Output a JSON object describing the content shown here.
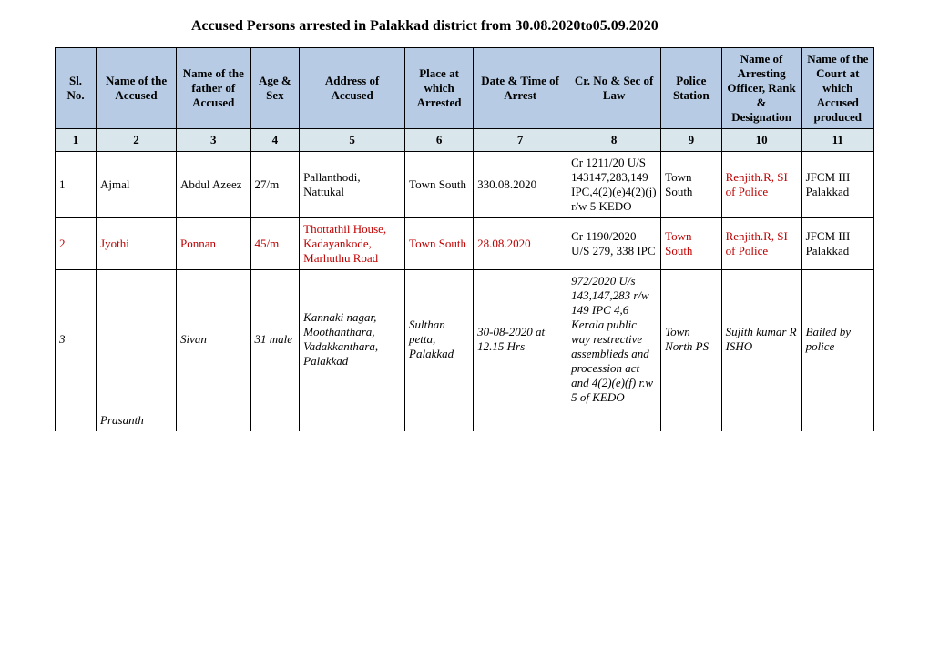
{
  "title": "Accused Persons arrested in   Palakkad  district from  30.08.2020to05.09.2020",
  "columns": [
    {
      "label": "Sl. No.",
      "width": "42"
    },
    {
      "label": "Name of the Accused",
      "width": "82"
    },
    {
      "label": "Name of the father of Accused",
      "width": "76"
    },
    {
      "label": "Age & Sex",
      "width": "50"
    },
    {
      "label": "Address of Accused",
      "width": "108"
    },
    {
      "label": "Place at which Arrested",
      "width": "70"
    },
    {
      "label": "Date & Time of Arrest",
      "width": "96"
    },
    {
      "label": "Cr. No & Sec of Law",
      "width": "96"
    },
    {
      "label": "Police Station",
      "width": "62"
    },
    {
      "label": "Name of Arresting Officer, Rank & Designation",
      "width": "82"
    },
    {
      "label": "Name of the Court at which Accused produced",
      "width": "74"
    }
  ],
  "numrow": [
    "1",
    "2",
    "3",
    "4",
    "5",
    "6",
    "7",
    "8",
    "9",
    "10",
    "11"
  ],
  "rows": [
    {
      "cells": [
        {
          "text": "1"
        },
        {
          "text": "Ajmal"
        },
        {
          "text": "Abdul Azeez"
        },
        {
          "text": "27/m"
        },
        {
          "text": "Pallanthodi, Nattukal"
        },
        {
          "text": "Town South"
        },
        {
          "text": "330.08.2020"
        },
        {
          "text": "Cr 1211/20 U/S 143147,283,149 IPC,4(2)(e)4(2)(j) r/w 5 KEDO"
        },
        {
          "text": "Town South"
        },
        {
          "text": "Renjith.R, SI of Police",
          "red": true
        },
        {
          "text": "JFCM III Palakkad"
        }
      ]
    },
    {
      "red": true,
      "cells": [
        {
          "text": "2"
        },
        {
          "text": "Jyothi"
        },
        {
          "text": "Ponnan"
        },
        {
          "text": "45/m"
        },
        {
          "text": "Thottathil House, Kadayankode, Marhuthu Road"
        },
        {
          "text": "Town South"
        },
        {
          "text": "28.08.2020"
        },
        {
          "text": "Cr 1190/2020 U/S 279, 338 IPC",
          "red": false
        },
        {
          "text": "Town South"
        },
        {
          "text": "Renjith.R, SI of Police"
        },
        {
          "text": "JFCM III Palakkad",
          "red": false
        }
      ]
    },
    {
      "italic": true,
      "cells": [
        {
          "text": "3"
        },
        {
          "text": ""
        },
        {
          "text": "Sivan"
        },
        {
          "text": "31 male"
        },
        {
          "text": "Kannaki nagar, Moothanthara, Vadakkanthara, Palakkad"
        },
        {
          "text": "Sulthan petta, Palakkad"
        },
        {
          "text": "30-08-2020 at 12.15 Hrs"
        },
        {
          "text": "972/2020 U/s 143,147,283 r/w 149 IPC 4,6 Kerala public way restrective assemblieds and procession act and 4(2)(e)(f) r.w 5 of KEDO"
        },
        {
          "text": "Town North PS"
        },
        {
          "text": "Sujith kumar R ISHO"
        },
        {
          "text": "Bailed by police"
        }
      ]
    }
  ],
  "partial_row": {
    "italic": true,
    "cells": [
      {
        "text": ""
      },
      {
        "text": "Prasanth"
      },
      {
        "text": ""
      },
      {
        "text": ""
      },
      {
        "text": ""
      },
      {
        "text": ""
      },
      {
        "text": ""
      },
      {
        "text": ""
      },
      {
        "text": ""
      },
      {
        "text": ""
      },
      {
        "text": ""
      }
    ]
  }
}
